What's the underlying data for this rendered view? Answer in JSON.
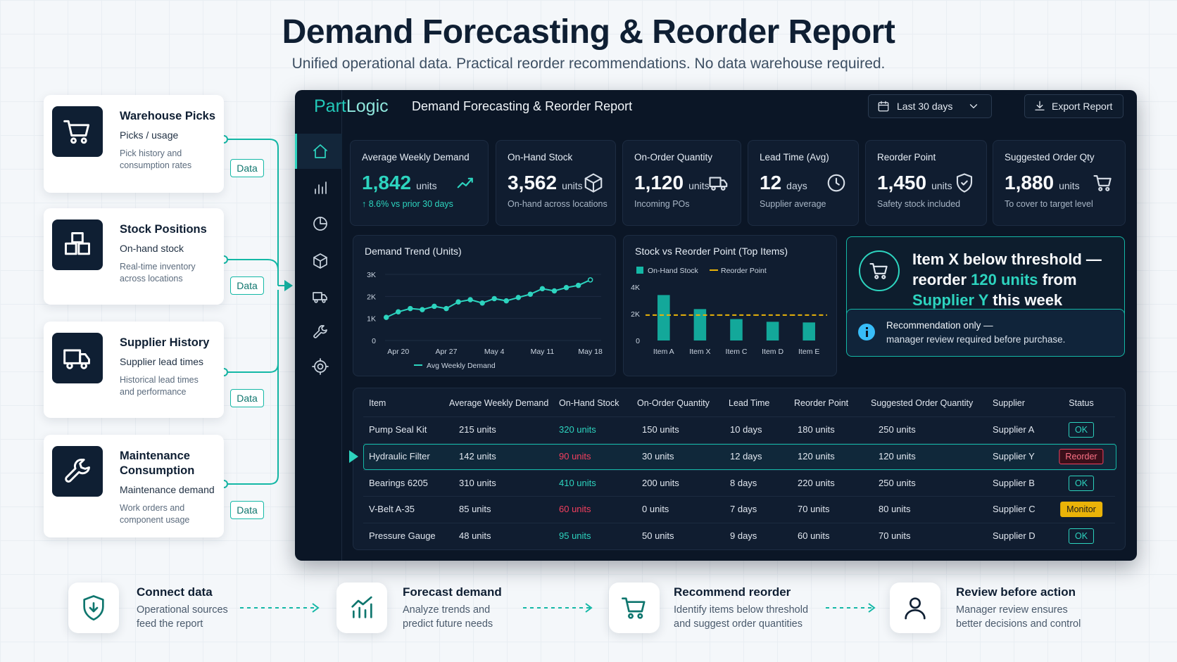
{
  "header": {
    "title": "Demand Forecasting & Reorder Report",
    "subtitle": "Unified operational data. Practical reorder recommendations. No data warehouse required."
  },
  "sources": [
    {
      "title": "Warehouse Picks",
      "subtitle": "Picks / usage",
      "description": "Pick history and consumption rates",
      "tag": "Data"
    },
    {
      "title": "Stock Positions",
      "subtitle": "On-hand stock",
      "description": "Real-time inventory across locations",
      "tag": "Data"
    },
    {
      "title": "Supplier History",
      "subtitle": "Supplier lead times",
      "description": "Historical lead times and performance",
      "tag": "Data"
    },
    {
      "title": "Maintenance Consumption",
      "subtitle": "Maintenance demand",
      "description": "Work orders and component usage",
      "tag": "Data"
    }
  ],
  "dashboard": {
    "brand": [
      "Part",
      "Logic"
    ],
    "title": "Demand Forecasting & Reorder Report",
    "date_range": "Last 30 days",
    "export": "Export Report",
    "kpis": [
      {
        "label": "Average Weekly Demand",
        "value": "1,842",
        "unit": "units",
        "note": "↑ 8.6% vs prior 30 days"
      },
      {
        "label": "On-Hand Stock",
        "value": "3,562",
        "unit": "units",
        "note": "On-hand across locations"
      },
      {
        "label": "On-Order Quantity",
        "value": "1,120",
        "unit": "units",
        "note": "Incoming POs"
      },
      {
        "label": "Lead Time (Avg)",
        "value": "12",
        "unit": "days",
        "note": "Supplier average"
      },
      {
        "label": "Reorder Point",
        "value": "1,450",
        "unit": "units",
        "note": "Safety stock included"
      },
      {
        "label": "Suggested Order Qty",
        "value": "1,880",
        "unit": "units",
        "note": "To cover to target level"
      }
    ],
    "alert": {
      "parts": [
        "Item X below threshold — reorder ",
        "120 units",
        " from ",
        "Supplier Y",
        " this week"
      ],
      "note_title": "Recommendation only —",
      "note_text": "manager review required before purchase."
    },
    "table": {
      "columns": [
        "Item",
        "Average Weekly Demand",
        "On-Hand Stock",
        "On-Order Quantity",
        "Lead Time",
        "Reorder Point",
        "Suggested Order Quantity",
        "Supplier",
        "Status"
      ],
      "rows": [
        [
          "Pump Seal Kit",
          "215 units",
          "320 units",
          "150 units",
          "10 days",
          "180 units",
          "250 units",
          "Supplier A",
          "OK"
        ],
        [
          "Hydraulic Filter",
          "142 units",
          "90 units",
          "30 units",
          "12 days",
          "120 units",
          "120 units",
          "Supplier Y",
          "Reorder"
        ],
        [
          "Bearings 6205",
          "310 units",
          "410 units",
          "200 units",
          "8 days",
          "220 units",
          "250 units",
          "Supplier B",
          "OK"
        ],
        [
          "V-Belt A-35",
          "85 units",
          "60 units",
          "0 units",
          "7 days",
          "70 units",
          "80 units",
          "Supplier C",
          "Monitor"
        ],
        [
          "Pressure Gauge",
          "48 units",
          "95 units",
          "50 units",
          "9 days",
          "60 units",
          "70 units",
          "Supplier D",
          "OK"
        ]
      ],
      "highlight_row": 1,
      "stock_colors": [
        "#2dd4bf",
        "#f43f5e",
        "#2dd4bf",
        "#f43f5e",
        "#2dd4bf"
      ],
      "status_colors": [
        "#2dd4bf",
        "#f43f5e",
        "#2dd4bf",
        "#eab308",
        "#2dd4bf"
      ],
      "status_fills": [
        "transparent",
        "#3a0f1a",
        "transparent",
        "#eab308",
        "transparent"
      ],
      "status_text_colors": [
        "#2dd4bf",
        "#fb7185",
        "#2dd4bf",
        "#1a1a1a",
        "#2dd4bf"
      ]
    }
  },
  "chart_data": [
    {
      "type": "line",
      "title": "Demand Trend (Units)",
      "categories": [
        null,
        "Apr 20",
        null,
        null,
        null,
        "Apr 27",
        null,
        null,
        null,
        "May 4",
        null,
        null,
        null,
        "May 11",
        null,
        null,
        null,
        "May 18"
      ],
      "series": [
        {
          "name": "Avg Weekly Demand",
          "color": "#2dd4bf",
          "values": [
            1050,
            1300,
            1450,
            1400,
            1550,
            1450,
            1750,
            1850,
            1700,
            1900,
            1800,
            1950,
            2100,
            2350,
            2250,
            2400,
            2500,
            2750
          ]
        }
      ],
      "ylim": [
        0,
        3000
      ],
      "yticks": [
        0,
        {
          "value": 1000,
          "label": "1K"
        },
        {
          "value": 2000,
          "label": "2K"
        },
        {
          "value": 3000,
          "label": "3K"
        }
      ],
      "grid": true
    },
    {
      "type": "bar",
      "title": "Stock vs Reorder Point (Top Items)",
      "categories": [
        "Item A",
        "Item X",
        "Item C",
        "Item D",
        "Item E"
      ],
      "series": [
        {
          "name": "On-Hand Stock",
          "color": "#14b8a6",
          "values": [
            3400,
            2350,
            1600,
            1400,
            1350
          ]
        },
        {
          "name": "Reorder Point",
          "type": "line",
          "color": "#eab308",
          "values": [
            1900,
            1900,
            1900,
            1900,
            1900
          ]
        }
      ],
      "ylim": [
        0,
        4000
      ],
      "yticks": [
        0,
        {
          "value": 2000,
          "label": "2K"
        },
        {
          "value": 4000,
          "label": "4K"
        }
      ],
      "grid": false
    }
  ],
  "steps": [
    {
      "title": "Connect data",
      "text": "Operational sources feed the report"
    },
    {
      "title": "Forecast demand",
      "text": "Analyze trends and predict future needs"
    },
    {
      "title": "Recommend reorder",
      "text": "Identify items below threshold and suggest order quantities"
    },
    {
      "title": "Review before action",
      "text": "Manager review ensures better decisions and control"
    }
  ]
}
